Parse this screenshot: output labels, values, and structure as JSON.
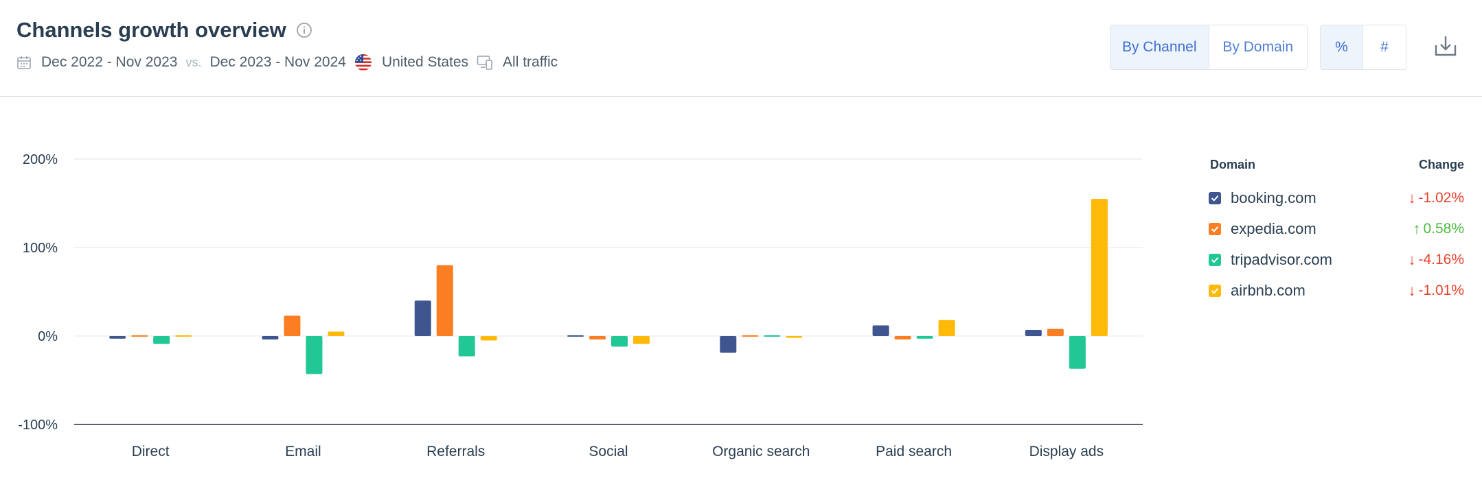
{
  "header": {
    "title": "Channels growth overview",
    "period_a": "Dec 2022 - Nov 2023",
    "vs_label": "vs.",
    "period_b": "Dec 2023 - Nov 2024",
    "country": "United States",
    "traffic": "All traffic",
    "view_toggle": [
      "By Channel",
      "By Domain"
    ],
    "view_selected": "By Channel",
    "unit_toggle": [
      "%",
      "#"
    ],
    "unit_selected": "%"
  },
  "icons": {
    "info": "info-icon",
    "calendar": "calendar-icon",
    "flag": "us-flag-icon",
    "devices": "devices-icon",
    "download": "download-icon",
    "checkbox": "checkmark-icon"
  },
  "legend": {
    "domain_header": "Domain",
    "change_header": "Change",
    "items": [
      {
        "domain": "booking.com",
        "color": "#3e5590",
        "change": "-1.02%",
        "direction": "down"
      },
      {
        "domain": "expedia.com",
        "color": "#fb7e22",
        "change": "0.58%",
        "direction": "up"
      },
      {
        "domain": "tripadvisor.com",
        "color": "#21c795",
        "change": "-4.16%",
        "direction": "down"
      },
      {
        "domain": "airbnb.com",
        "color": "#ffb908",
        "change": "-1.01%",
        "direction": "down"
      }
    ]
  },
  "colors": {
    "up": "#4cbb3d",
    "down": "#e8412c",
    "grid": "#e6e9ec",
    "baseline": "#2a2f36"
  },
  "chart_data": {
    "type": "bar",
    "categories": [
      "Direct",
      "Email",
      "Referrals",
      "Social",
      "Organic search",
      "Paid search",
      "Display ads"
    ],
    "series": [
      {
        "name": "booking.com",
        "values": [
          -3,
          -4,
          40,
          0,
          -19,
          12,
          7
        ]
      },
      {
        "name": "expedia.com",
        "values": [
          0,
          23,
          80,
          -4,
          -1,
          -4,
          8
        ]
      },
      {
        "name": "tripadvisor.com",
        "values": [
          -9,
          -43,
          -23,
          -12,
          0,
          -3,
          -37
        ]
      },
      {
        "name": "airbnb.com",
        "values": [
          -1,
          5,
          -5,
          -9,
          -2,
          18,
          155
        ]
      }
    ],
    "yticks": [
      "200%",
      "100%",
      "0%",
      "-100%"
    ],
    "ytick_values": [
      200,
      100,
      0,
      -100
    ],
    "ylim": [
      -100,
      200
    ],
    "grid": true,
    "legend_position": "right"
  }
}
